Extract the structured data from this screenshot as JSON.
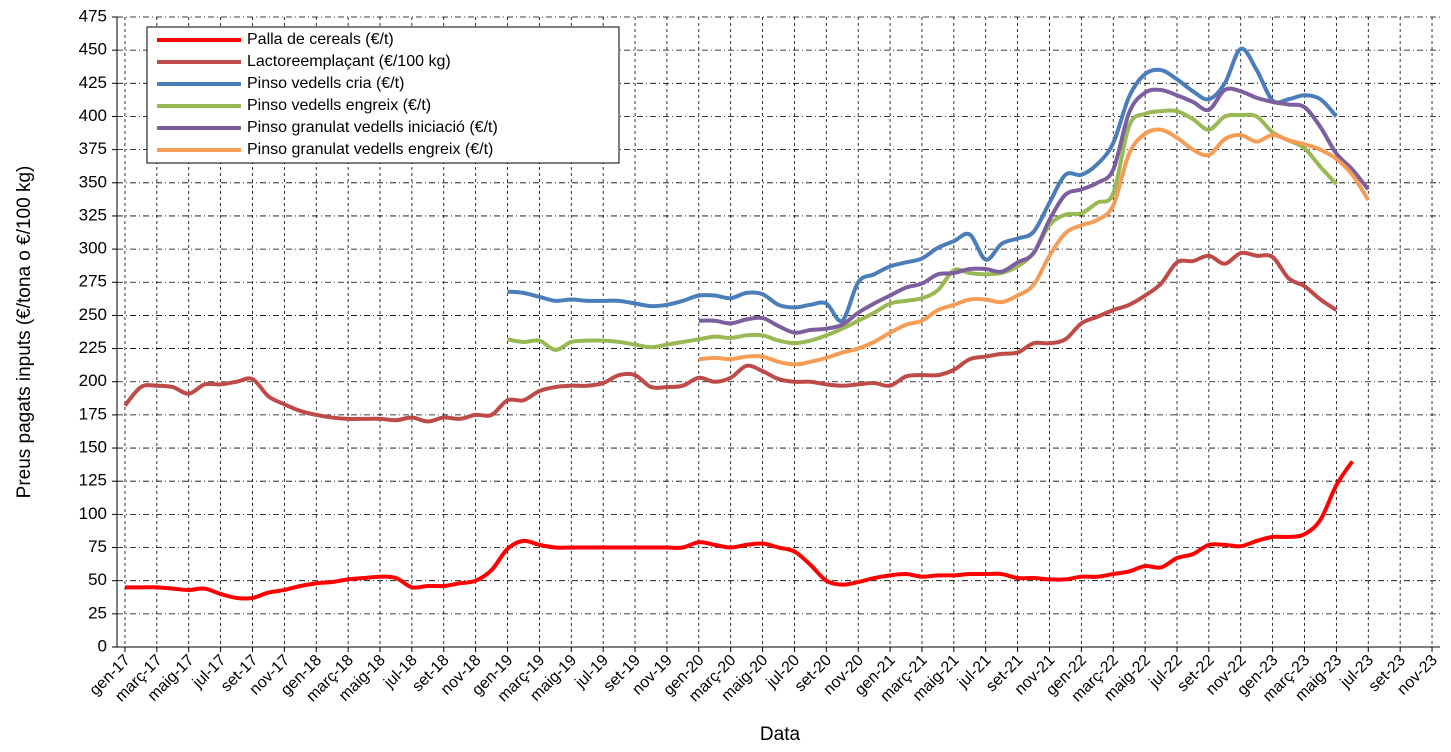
{
  "chart_data": {
    "type": "line",
    "x_label": "Data",
    "y_label": "Preus pagats inputs (€/tona o €/100 kg)",
    "categories": [
      "gen-17",
      null,
      "març-17",
      null,
      "maig-17",
      null,
      "jul-17",
      null,
      "set-17",
      null,
      "nov-17",
      null,
      "gen-18",
      null,
      "març-18",
      null,
      "maig-18",
      null,
      "jul-18",
      null,
      "set-18",
      null,
      "nov-18",
      null,
      "gen-19",
      null,
      "març-19",
      null,
      "maig-19",
      null,
      "jul-19",
      null,
      "set-19",
      null,
      "nov-19",
      null,
      "gen-20",
      null,
      "març-20",
      null,
      "maig-20",
      null,
      "jul-20",
      null,
      "set-20",
      null,
      "nov-20",
      null,
      "gen-21",
      null,
      "març-21",
      null,
      "maig-21",
      null,
      "jul-21",
      null,
      "set-21",
      null,
      "nov-21",
      null,
      "gen-22",
      null,
      "març-22",
      null,
      "maig-22",
      null,
      "jul-22",
      null,
      "set-22",
      null,
      "nov-22",
      null,
      "gen-23",
      null,
      "març-23",
      null,
      "maig-23",
      null,
      "jul-23",
      null,
      "set-23",
      null,
      "nov-23"
    ],
    "series": [
      {
        "name": "Palla de cereals (€/t)",
        "color": "#ff0000",
        "values": [
          45,
          45,
          45,
          44,
          43,
          44,
          40,
          37,
          37,
          41,
          43,
          46,
          48,
          49,
          51,
          52,
          53,
          52,
          45,
          46,
          46,
          48,
          50,
          58,
          74,
          80,
          77,
          75,
          75,
          75,
          75,
          75,
          75,
          75,
          75,
          75,
          79,
          77,
          75,
          77,
          78,
          75,
          72,
          62,
          50,
          47,
          49,
          52,
          54,
          55,
          53,
          54,
          54,
          55,
          55,
          55,
          52,
          52,
          51,
          51,
          53,
          53,
          55,
          57,
          61,
          60,
          67,
          70,
          77,
          77,
          76,
          80,
          83,
          83,
          85,
          96,
          122,
          140,
          null,
          null,
          null,
          null,
          null
        ]
      },
      {
        "name": "Lactoreemplaçant (€/100 kg)",
        "color": "#be4b48",
        "values": [
          182,
          196,
          197,
          196,
          191,
          198,
          198,
          200,
          202,
          189,
          183,
          178,
          175,
          173,
          172,
          172,
          172,
          171,
          173,
          170,
          173,
          172,
          175,
          175,
          186,
          186,
          193,
          196,
          197,
          197,
          199,
          205,
          205,
          196,
          196,
          197,
          203,
          200,
          203,
          212,
          208,
          202,
          200,
          200,
          198,
          197,
          198,
          199,
          197,
          204,
          205,
          205,
          209,
          217,
          219,
          221,
          222,
          229,
          229,
          232,
          244,
          249,
          254,
          258,
          265,
          274,
          290,
          291,
          295,
          289,
          297,
          295,
          294,
          278,
          272,
          262,
          254,
          null,
          null,
          null,
          null,
          null,
          null
        ]
      },
      {
        "name": "Pinso vedells cria (€/t)",
        "color": "#4a7ebb",
        "values": [
          null,
          null,
          null,
          null,
          null,
          null,
          null,
          null,
          null,
          null,
          null,
          null,
          null,
          null,
          null,
          null,
          null,
          null,
          null,
          null,
          null,
          null,
          null,
          null,
          268,
          267,
          264,
          261,
          262,
          261,
          261,
          261,
          259,
          257,
          258,
          261,
          265,
          265,
          263,
          267,
          266,
          258,
          256,
          258,
          259,
          246,
          275,
          281,
          287,
          290,
          293,
          301,
          306,
          311,
          292,
          304,
          308,
          313,
          335,
          356,
          356,
          364,
          380,
          415,
          432,
          435,
          428,
          419,
          413,
          425,
          451,
          435,
          412,
          413,
          416,
          413,
          400,
          null,
          null,
          null,
          null,
          null,
          null
        ]
      },
      {
        "name": "Pinso vedells engreix (€/t)",
        "color": "#98b954",
        "values": [
          null,
          null,
          null,
          null,
          null,
          null,
          null,
          null,
          null,
          null,
          null,
          null,
          null,
          null,
          null,
          null,
          null,
          null,
          null,
          null,
          null,
          null,
          null,
          null,
          232,
          230,
          231,
          224,
          230,
          231,
          231,
          230,
          228,
          226,
          228,
          230,
          232,
          234,
          233,
          235,
          235,
          231,
          229,
          231,
          235,
          240,
          246,
          252,
          259,
          261,
          263,
          269,
          284,
          282,
          281,
          282,
          287,
          297,
          318,
          326,
          327,
          335,
          342,
          393,
          402,
          404,
          404,
          398,
          390,
          400,
          401,
          400,
          388,
          382,
          376,
          362,
          349,
          null,
          null,
          null,
          null,
          null,
          null
        ]
      },
      {
        "name": "Pinso granulat vedells iniciació (€/t)",
        "color": "#7d5fa0",
        "values": [
          null,
          null,
          null,
          null,
          null,
          null,
          null,
          null,
          null,
          null,
          null,
          null,
          null,
          null,
          null,
          null,
          null,
          null,
          null,
          null,
          null,
          null,
          null,
          null,
          null,
          null,
          null,
          null,
          null,
          null,
          null,
          null,
          null,
          null,
          null,
          null,
          246,
          246,
          244,
          247,
          248,
          242,
          237,
          239,
          240,
          243,
          252,
          259,
          265,
          271,
          274,
          281,
          282,
          285,
          285,
          283,
          290,
          297,
          322,
          341,
          345,
          350,
          360,
          403,
          418,
          420,
          416,
          411,
          405,
          420,
          419,
          414,
          411,
          409,
          407,
          392,
          372,
          360,
          345,
          null,
          null,
          null,
          null
        ]
      },
      {
        "name": "Pinso granulat vedells engreix (€/t)",
        "color": "#f59d56",
        "values": [
          null,
          null,
          null,
          null,
          null,
          null,
          null,
          null,
          null,
          null,
          null,
          null,
          null,
          null,
          null,
          null,
          null,
          null,
          null,
          null,
          null,
          null,
          null,
          null,
          null,
          null,
          null,
          null,
          null,
          null,
          null,
          null,
          null,
          null,
          null,
          null,
          217,
          218,
          217,
          219,
          219,
          215,
          213,
          215,
          218,
          222,
          225,
          230,
          237,
          243,
          246,
          254,
          258,
          262,
          262,
          260,
          265,
          273,
          295,
          312,
          318,
          322,
          333,
          372,
          387,
          390,
          384,
          375,
          371,
          383,
          386,
          381,
          386,
          382,
          379,
          375,
          368,
          356,
          337,
          null,
          null,
          null,
          null
        ]
      }
    ],
    "ylim": [
      0,
      475
    ],
    "yticks": [
      0,
      25,
      50,
      75,
      100,
      125,
      150,
      175,
      200,
      225,
      250,
      275,
      300,
      325,
      350,
      375,
      400,
      425,
      450,
      475
    ],
    "grid": true,
    "legend": "top-left"
  }
}
